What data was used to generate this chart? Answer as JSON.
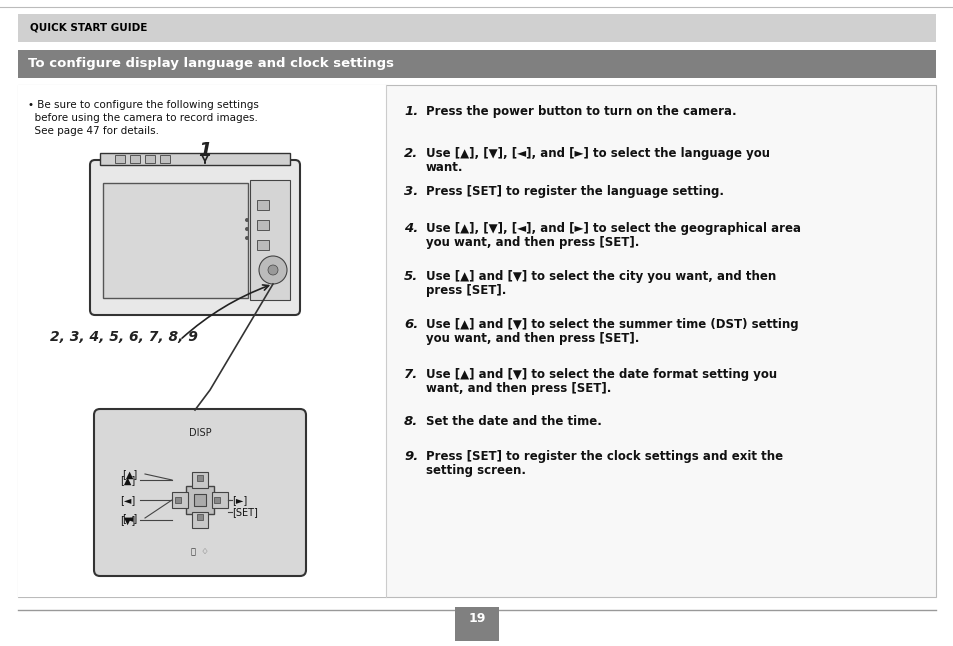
{
  "page_bg": "#ffffff",
  "header_bar_color": "#d0d0d0",
  "header_text": "QUICK START GUIDE",
  "header_text_color": "#000000",
  "title_bar_color": "#808080",
  "title_text": "To configure display language and clock settings",
  "title_text_color": "#ffffff",
  "bullet_line1": "• Be sure to configure the following settings",
  "bullet_line2": "  before using the camera to record images.",
  "bullet_line3": "  See page 47 for details.",
  "steps": [
    {
      "num": "1.",
      "text": "Press the power button to turn on the camera.",
      "line2": ""
    },
    {
      "num": "2.",
      "text": "Use [▲], [▼], [◄], and [►] to select the language you",
      "line2": "want."
    },
    {
      "num": "3.",
      "text": "Press [SET] to register the language setting.",
      "line2": ""
    },
    {
      "num": "4.",
      "text": "Use [▲], [▼], [◄], and [►] to select the geographical area",
      "line2": "you want, and then press [SET]."
    },
    {
      "num": "5.",
      "text": "Use [▲] and [▼] to select the city you want, and then",
      "line2": "press [SET]."
    },
    {
      "num": "6.",
      "text": "Use [▲] and [▼] to select the summer time (DST) setting",
      "line2": "you want, and then press [SET]."
    },
    {
      "num": "7.",
      "text": "Use [▲] and [▼] to select the date format setting you",
      "line2": "want, and then press [SET]."
    },
    {
      "num": "8.",
      "text": "Set the date and the time.",
      "line2": ""
    },
    {
      "num": "9.",
      "text": "Press [SET] to register the clock settings and exit the",
      "line2": "setting screen."
    }
  ],
  "page_num": "19",
  "page_num_bg": "#808080",
  "page_num_color": "#ffffff"
}
